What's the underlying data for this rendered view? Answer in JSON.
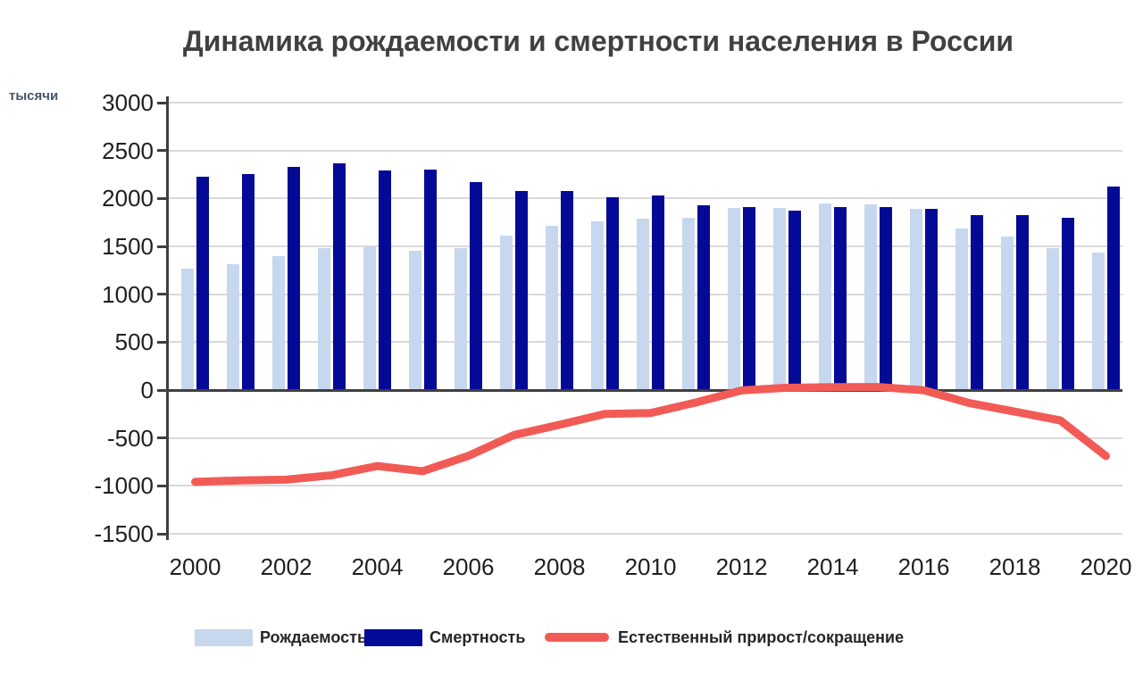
{
  "title": "Динамика рождаемости и смертности населения в России",
  "y_unit_label": "тысячи",
  "legend": {
    "birth_label": "Рождаемость",
    "death_label": "Смертность",
    "natural_label": "Естественный прирост/сокращение"
  },
  "colors": {
    "birth_bar": "#c7d7ee",
    "death_bar": "#050a96",
    "natural_line": "#f25b55",
    "grid": "#d9d9d9",
    "axis": "#3f3f3f",
    "title_text": "#404040",
    "unit_text": "#44546a",
    "tick_text": "#1f1f1f",
    "legend_text": "#262626"
  },
  "chart_data": {
    "type": "bar",
    "title": "Динамика рождаемости и смертности населения в России",
    "ylabel": "тысячи",
    "xlabel": "",
    "ylim": [
      -1500,
      3000
    ],
    "ytick_step": 500,
    "ytick_labels": [
      "3000",
      "2500",
      "2000",
      "1500",
      "1000",
      "500",
      "0",
      "-500",
      "-1000",
      "-1500"
    ],
    "categories": [
      2000,
      2001,
      2002,
      2003,
      2004,
      2005,
      2006,
      2007,
      2008,
      2009,
      2010,
      2011,
      2012,
      2013,
      2014,
      2015,
      2016,
      2017,
      2018,
      2019,
      2020
    ],
    "xtick_labels": [
      "2000",
      "2002",
      "2004",
      "2006",
      "2008",
      "2010",
      "2012",
      "2014",
      "2016",
      "2018",
      "2020"
    ],
    "grid": true,
    "legend_position": "bottom",
    "series": [
      {
        "name": "Рождаемость",
        "type": "bar",
        "values": [
          1267,
          1312,
          1397,
          1477,
          1503,
          1457,
          1480,
          1610,
          1714,
          1762,
          1789,
          1797,
          1902,
          1896,
          1943,
          1941,
          1889,
          1690,
          1604,
          1481,
          1436
        ]
      },
      {
        "name": "Смертность",
        "type": "bar",
        "values": [
          2225,
          2255,
          2332,
          2366,
          2295,
          2304,
          2167,
          2080,
          2076,
          2011,
          2029,
          1926,
          1906,
          1872,
          1912,
          1909,
          1891,
          1826,
          1829,
          1798,
          2125
        ]
      },
      {
        "name": "Естественный прирост/сокращение",
        "type": "line",
        "values": [
          -958,
          -943,
          -935,
          -889,
          -793,
          -847,
          -687,
          -470,
          -362,
          -249,
          -240,
          -129,
          -4,
          24,
          30,
          32,
          -2,
          -136,
          -225,
          -317,
          -689
        ]
      }
    ]
  }
}
